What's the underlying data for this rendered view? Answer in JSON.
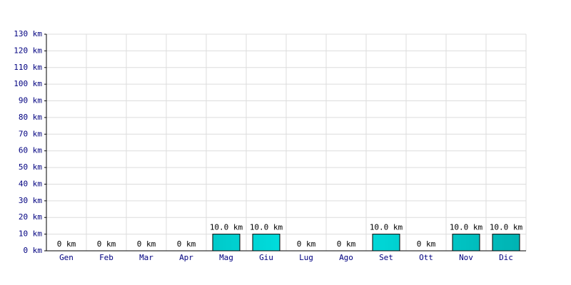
{
  "chart_data": {
    "type": "bar",
    "categories": [
      "Gen",
      "Feb",
      "Mar",
      "Apr",
      "Mag",
      "Giu",
      "Lug",
      "Ago",
      "Set",
      "Ott",
      "Nov",
      "Dic"
    ],
    "values": [
      0,
      0,
      0,
      0,
      10,
      10,
      0,
      0,
      10,
      0,
      10,
      10
    ],
    "value_labels": [
      "0 km",
      "0 km",
      "0 km",
      "0 km",
      "10.0 km",
      "10.0 km",
      "0 km",
      "0 km",
      "10.0 km",
      "0 km",
      "10.0 km",
      "10.0 km"
    ],
    "color": "#00e6e6",
    "ylim": [
      0,
      130
    ],
    "yticks": [
      {
        "value": 0,
        "label": "0 km"
      },
      {
        "value": 10,
        "label": "10 km"
      },
      {
        "value": 20,
        "label": "20 km"
      },
      {
        "value": 30,
        "label": "30 km"
      },
      {
        "value": 40,
        "label": "40 km"
      },
      {
        "value": 50,
        "label": "50 km"
      },
      {
        "value": 60,
        "label": "60 km"
      },
      {
        "value": 70,
        "label": "70 km"
      },
      {
        "value": 80,
        "label": "80 km"
      },
      {
        "value": 90,
        "label": "90 km"
      },
      {
        "value": 100,
        "label": "100 km"
      },
      {
        "value": 110,
        "label": "110 km"
      },
      {
        "value": 120,
        "label": "120 km"
      },
      {
        "value": 130,
        "label": "130 km"
      }
    ],
    "grid": true
  }
}
